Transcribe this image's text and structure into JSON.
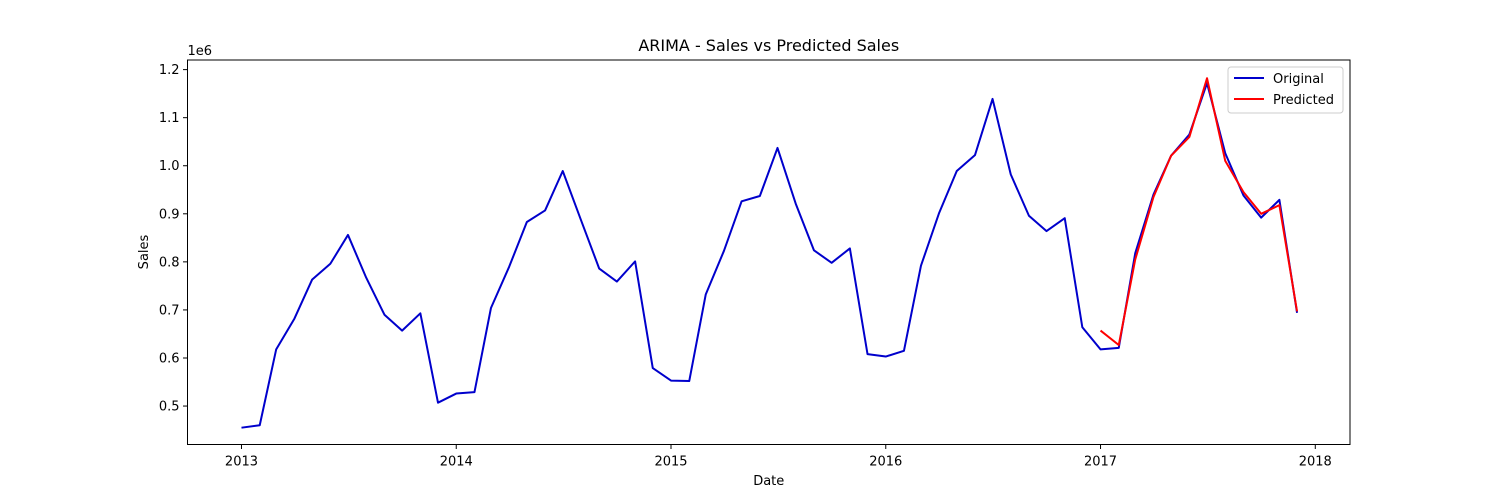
{
  "chart_data": {
    "type": "line",
    "title": "ARIMA - Sales vs Predicted Sales",
    "xlabel": "Date",
    "ylabel": "Sales",
    "y_offset_label": "1e6",
    "y_scale_multiplier": 1000000,
    "xlim": [
      "2012-10-01",
      "2018-03-01"
    ],
    "ylim": [
      0.42,
      1.22
    ],
    "x_ticks": [
      "2013",
      "2014",
      "2015",
      "2016",
      "2017",
      "2018"
    ],
    "y_ticks": [
      "0.5",
      "0.6",
      "0.7",
      "0.8",
      "0.9",
      "1.0",
      "1.1",
      "1.2"
    ],
    "grid": false,
    "legend_position": "top-right",
    "series": [
      {
        "name": "Original",
        "color": "#0000cc",
        "x": [
          "2013-01-01",
          "2013-02-01",
          "2013-03-01",
          "2013-04-01",
          "2013-05-01",
          "2013-06-01",
          "2013-07-01",
          "2013-08-01",
          "2013-09-01",
          "2013-10-01",
          "2013-11-01",
          "2013-12-01",
          "2014-01-01",
          "2014-02-01",
          "2014-03-01",
          "2014-04-01",
          "2014-05-01",
          "2014-06-01",
          "2014-07-01",
          "2014-08-01",
          "2014-09-01",
          "2014-10-01",
          "2014-11-01",
          "2014-12-01",
          "2015-01-01",
          "2015-02-01",
          "2015-03-01",
          "2015-04-01",
          "2015-05-01",
          "2015-06-01",
          "2015-07-01",
          "2015-08-01",
          "2015-09-01",
          "2015-10-01",
          "2015-11-01",
          "2015-12-01",
          "2016-01-01",
          "2016-02-01",
          "2016-03-01",
          "2016-04-01",
          "2016-05-01",
          "2016-06-01",
          "2016-07-01",
          "2016-08-01",
          "2016-09-01",
          "2016-10-01",
          "2016-11-01",
          "2016-12-01",
          "2017-01-01",
          "2017-02-01",
          "2017-03-01",
          "2017-04-01",
          "2017-05-01",
          "2017-06-01",
          "2017-07-01",
          "2017-08-01",
          "2017-09-01",
          "2017-10-01",
          "2017-11-01",
          "2017-12-01"
        ],
        "values": [
          0.455,
          0.46,
          0.618,
          0.682,
          0.763,
          0.796,
          0.856,
          0.767,
          0.69,
          0.657,
          0.693,
          0.507,
          0.526,
          0.529,
          0.704,
          0.79,
          0.883,
          0.907,
          0.989,
          0.887,
          0.786,
          0.759,
          0.801,
          0.579,
          0.553,
          0.552,
          0.732,
          0.823,
          0.926,
          0.937,
          1.037,
          0.921,
          0.824,
          0.798,
          0.828,
          0.608,
          0.603,
          0.615,
          0.792,
          0.902,
          0.989,
          1.022,
          1.139,
          0.982,
          0.896,
          0.864,
          0.891,
          0.664,
          0.618,
          0.621,
          0.818,
          0.94,
          1.021,
          1.065,
          1.172,
          1.026,
          0.938,
          0.892,
          0.929,
          0.694
        ]
      },
      {
        "name": "Predicted",
        "color": "#ff0000",
        "x": [
          "2017-01-01",
          "2017-02-01",
          "2017-03-01",
          "2017-04-01",
          "2017-05-01",
          "2017-06-01",
          "2017-07-01",
          "2017-08-01",
          "2017-09-01",
          "2017-10-01",
          "2017-11-01",
          "2017-12-01"
        ],
        "values": [
          0.657,
          0.627,
          0.805,
          0.935,
          1.021,
          1.06,
          1.182,
          1.01,
          0.945,
          0.9,
          0.918,
          0.697
        ]
      }
    ]
  }
}
